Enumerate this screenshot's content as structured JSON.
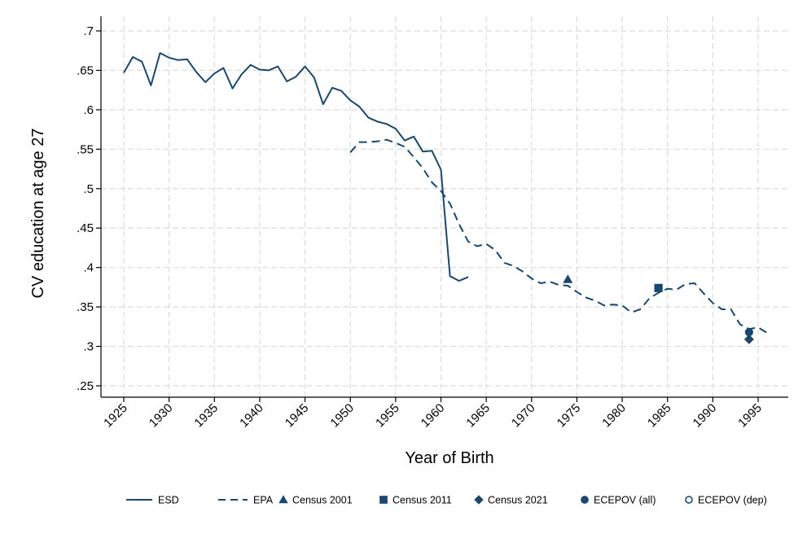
{
  "chart_data": {
    "type": "line",
    "title": "",
    "xlabel": "Year of Birth",
    "ylabel": "CV education at age 27",
    "xlim": [
      1923.5,
      1997
    ],
    "ylim": [
      0.23,
      0.72
    ],
    "xticks": [
      1925,
      1930,
      1935,
      1940,
      1945,
      1950,
      1955,
      1960,
      1965,
      1970,
      1975,
      1980,
      1985,
      1990,
      1995
    ],
    "xtick_labels": [
      "1925",
      "1930",
      "1935",
      "1940",
      "1945",
      "1950",
      "1955",
      "1960",
      "1965",
      "1970",
      "1975",
      "1980",
      "1985",
      "1990",
      "1995"
    ],
    "yticks": [
      0.25,
      0.3,
      0.35,
      0.4,
      0.45,
      0.5,
      0.55,
      0.6,
      0.65,
      0.7
    ],
    "ytick_labels": [
      ".25",
      ".3",
      ".35",
      ".4",
      ".45",
      ".5",
      ".55",
      ".6",
      ".65",
      ".7"
    ],
    "grid": true,
    "legend_position": "bottom",
    "color": "#1a476f",
    "series": [
      {
        "name": "ESD",
        "style": "solid",
        "x": [
          1925,
          1926,
          1927,
          1928,
          1929,
          1930,
          1931,
          1932,
          1933,
          1934,
          1935,
          1936,
          1937,
          1938,
          1939,
          1940,
          1941,
          1942,
          1943,
          1944,
          1945,
          1946,
          1947,
          1948,
          1949,
          1950,
          1951,
          1952,
          1953,
          1954,
          1955,
          1956,
          1957,
          1958,
          1959,
          1960,
          1961,
          1962,
          1963
        ],
        "values": [
          0.647,
          0.667,
          0.661,
          0.631,
          0.672,
          0.666,
          0.663,
          0.664,
          0.648,
          0.635,
          0.646,
          0.653,
          0.627,
          0.645,
          0.657,
          0.651,
          0.65,
          0.655,
          0.636,
          0.642,
          0.655,
          0.641,
          0.607,
          0.628,
          0.624,
          0.612,
          0.604,
          0.59,
          0.585,
          0.582,
          0.576,
          0.561,
          0.566,
          0.547,
          0.548,
          0.524,
          0.389,
          0.383,
          0.388
        ]
      },
      {
        "name": "EPA",
        "style": "dashed",
        "x": [
          1950,
          1951,
          1952,
          1953,
          1954,
          1955,
          1956,
          1957,
          1958,
          1959,
          1960,
          1961,
          1962,
          1963,
          1964,
          1965,
          1966,
          1967,
          1968,
          1969,
          1970,
          1971,
          1972,
          1973,
          1974,
          1975,
          1976,
          1977,
          1978,
          1979,
          1980,
          1981,
          1982,
          1983,
          1984,
          1985,
          1986,
          1987,
          1988,
          1989,
          1990,
          1991,
          1992,
          1993,
          1994,
          1995,
          1996
        ],
        "values": [
          0.546,
          0.559,
          0.559,
          0.56,
          0.562,
          0.558,
          0.553,
          0.54,
          0.526,
          0.508,
          0.497,
          0.481,
          0.455,
          0.433,
          0.427,
          0.43,
          0.422,
          0.406,
          0.402,
          0.395,
          0.386,
          0.38,
          0.382,
          0.378,
          0.377,
          0.369,
          0.362,
          0.358,
          0.352,
          0.353,
          0.352,
          0.343,
          0.347,
          0.361,
          0.368,
          0.373,
          0.372,
          0.379,
          0.38,
          0.367,
          0.355,
          0.347,
          0.347,
          0.328,
          0.322,
          0.324,
          0.317
        ]
      }
    ],
    "points": [
      {
        "name": "Census 2001",
        "marker": "triangle",
        "x": 1974,
        "y": 0.385
      },
      {
        "name": "Census 2011",
        "marker": "square",
        "x": 1984,
        "y": 0.374
      },
      {
        "name": "Census 2021",
        "marker": "diamond",
        "x": 1994,
        "y": 0.309
      },
      {
        "name": "ECEPOV (all)",
        "marker": "circle",
        "x": 1994,
        "y": 0.318
      }
    ],
    "legend": [
      {
        "label": "ESD",
        "marker": "solid-line"
      },
      {
        "label": "EPA",
        "marker": "dashed-line"
      },
      {
        "label": "Census 2001",
        "marker": "triangle"
      },
      {
        "label": "Census 2011",
        "marker": "square"
      },
      {
        "label": "Census 2021",
        "marker": "diamond"
      },
      {
        "label": "ECEPOV (all)",
        "marker": "circle"
      },
      {
        "label": "ECEPOV (dep)",
        "marker": "hollow-circle"
      }
    ]
  }
}
